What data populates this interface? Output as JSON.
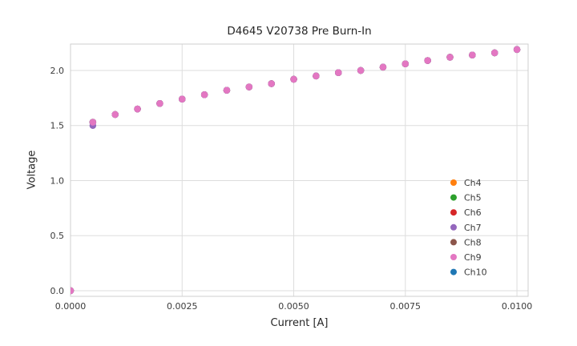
{
  "chart_data": {
    "type": "scatter",
    "title": "D4645 V20738 Pre Burn-In",
    "xlabel": "Current [A]",
    "ylabel": "Voltage",
    "xlim": [
      0.0,
      0.01025
    ],
    "ylim": [
      -0.051,
      2.24
    ],
    "xticks": [
      0.0,
      0.0025,
      0.005,
      0.0075,
      0.01
    ],
    "xtick_labels": [
      "0.0000",
      "0.0025",
      "0.0050",
      "0.0075",
      "0.0100"
    ],
    "yticks": [
      0.0,
      0.5,
      1.0,
      1.5,
      2.0
    ],
    "ytick_labels": [
      "0.0",
      "0.5",
      "1.0",
      "1.5",
      "2.0"
    ],
    "grid": true,
    "grid_color": "#dddddd",
    "frame_color": "#cfcfcf",
    "legend_position": "lower right",
    "x": [
      0.0,
      0.0005,
      0.001,
      0.0015,
      0.002,
      0.0025,
      0.003,
      0.0035,
      0.004,
      0.0045,
      0.005,
      0.0055,
      0.006,
      0.0065,
      0.007,
      0.0075,
      0.008,
      0.0085,
      0.009,
      0.0095,
      0.01
    ],
    "series": [
      {
        "name": "Ch4",
        "color": "#ff7f0e",
        "values": [
          0.0,
          1.53,
          1.6,
          1.65,
          1.7,
          1.74,
          1.78,
          1.82,
          1.85,
          1.88,
          1.92,
          1.95,
          1.98,
          2.0,
          2.03,
          2.06,
          2.09,
          2.12,
          2.14,
          2.16,
          2.19
        ]
      },
      {
        "name": "Ch5",
        "color": "#2ca02c",
        "values": [
          0.0,
          1.53,
          1.6,
          1.65,
          1.7,
          1.74,
          1.78,
          1.82,
          1.85,
          1.88,
          1.92,
          1.95,
          1.98,
          2.0,
          2.03,
          2.06,
          2.09,
          2.12,
          2.14,
          2.16,
          2.19
        ]
      },
      {
        "name": "Ch6",
        "color": "#d62728",
        "values": [
          0.0,
          1.53,
          1.6,
          1.65,
          1.7,
          1.74,
          1.78,
          1.82,
          1.85,
          1.88,
          1.92,
          1.95,
          1.98,
          2.0,
          2.03,
          2.06,
          2.09,
          2.12,
          2.14,
          2.16,
          2.19
        ]
      },
      {
        "name": "Ch7",
        "color": "#9467bd",
        "values": [
          0.0,
          1.5,
          1.6,
          1.65,
          1.7,
          1.74,
          1.78,
          1.82,
          1.85,
          1.88,
          1.92,
          1.95,
          1.98,
          2.0,
          2.03,
          2.06,
          2.09,
          2.12,
          2.14,
          2.16,
          2.19
        ]
      },
      {
        "name": "Ch8",
        "color": "#8c564b",
        "values": [
          0.0,
          1.53,
          1.6,
          1.65,
          1.7,
          1.74,
          1.78,
          1.82,
          1.85,
          1.88,
          1.92,
          1.95,
          1.98,
          2.0,
          2.03,
          2.06,
          2.09,
          2.12,
          2.14,
          2.16,
          2.19
        ]
      },
      {
        "name": "Ch9",
        "color": "#e377c2",
        "values": [
          0.0,
          1.53,
          1.6,
          1.65,
          1.7,
          1.74,
          1.78,
          1.82,
          1.85,
          1.88,
          1.92,
          1.95,
          1.98,
          2.0,
          2.03,
          2.06,
          2.09,
          2.12,
          2.14,
          2.16,
          2.19
        ]
      },
      {
        "name": "Ch10",
        "color": "#1f77b4",
        "values": [
          0.0,
          1.53,
          1.6,
          1.65,
          1.7,
          1.74,
          1.78,
          1.82,
          1.85,
          1.88,
          1.92,
          1.95,
          1.98,
          2.0,
          2.03,
          2.06,
          2.09,
          2.12,
          2.14,
          2.16,
          2.19
        ]
      }
    ],
    "draw_order": [
      "Ch4",
      "Ch5",
      "Ch6",
      "Ch8",
      "Ch10",
      "Ch7",
      "Ch9"
    ]
  }
}
